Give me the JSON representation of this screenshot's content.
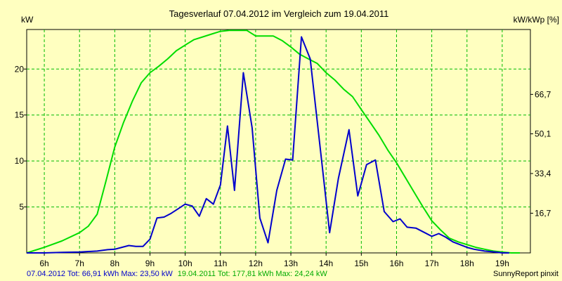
{
  "chart_data": {
    "type": "line",
    "title": "Tagesverlauf 07.04.2012 im Vergleich zum 19.04.2011",
    "ylabel_left": "kW",
    "ylabel_right": "kW/kWp [%]",
    "xlim": [
      5.5,
      19.8
    ],
    "ylim_left": [
      0,
      24.3
    ],
    "ylim_right": [
      0,
      94
    ],
    "x_ticks": [
      6,
      7,
      8,
      9,
      10,
      11,
      12,
      13,
      14,
      15,
      16,
      17,
      18,
      19
    ],
    "x_tick_labels": [
      "6h",
      "7h",
      "8h",
      "9h",
      "10h",
      "11h",
      "12h",
      "13h",
      "14h",
      "15h",
      "16h",
      "17h",
      "18h",
      "19h"
    ],
    "y_left_ticks": [
      5,
      10,
      15,
      20
    ],
    "y_left_tick_labels": [
      "5",
      "10",
      "15",
      "20"
    ],
    "y_right_ticks": [
      16.7,
      33.4,
      50.1,
      66.7
    ],
    "y_right_tick_labels": [
      "16,7",
      "33,4",
      "50,1",
      "66,7"
    ],
    "grid": true,
    "series": [
      {
        "name": "07.04.2012",
        "summary": "07.04.2012 Tot: 66,91 kWh Max: 23,50 kW",
        "color": "#0000cc",
        "x": [
          5.5,
          6.0,
          6.5,
          7.0,
          7.5,
          7.8,
          8.0,
          8.2,
          8.4,
          8.6,
          8.8,
          9.0,
          9.2,
          9.4,
          9.6,
          9.8,
          10.0,
          10.2,
          10.4,
          10.6,
          10.8,
          11.0,
          11.2,
          11.4,
          11.65,
          11.9,
          12.12,
          12.35,
          12.6,
          12.85,
          13.05,
          13.3,
          13.55,
          13.9,
          14.1,
          14.35,
          14.65,
          14.9,
          15.15,
          15.4,
          15.65,
          15.9,
          16.1,
          16.3,
          16.55,
          16.8,
          17.0,
          17.2,
          17.4,
          17.6,
          17.8,
          18.0,
          18.2,
          18.5,
          18.8,
          19.0,
          19.2
        ],
        "y": [
          0.0,
          0.0,
          0.05,
          0.1,
          0.2,
          0.35,
          0.4,
          0.6,
          0.8,
          0.7,
          0.7,
          1.5,
          3.8,
          3.9,
          4.3,
          4.8,
          5.3,
          5.1,
          4.0,
          5.9,
          5.3,
          7.4,
          13.8,
          6.8,
          19.6,
          13.6,
          3.8,
          1.1,
          6.8,
          10.2,
          10.1,
          23.5,
          21.1,
          9.1,
          2.2,
          8.1,
          13.4,
          6.2,
          9.6,
          10.1,
          4.5,
          3.4,
          3.7,
          2.8,
          2.7,
          2.2,
          1.8,
          2.1,
          1.7,
          1.2,
          0.9,
          0.6,
          0.4,
          0.2,
          0.1,
          0.0,
          0.0
        ]
      },
      {
        "name": "19.04.2011",
        "summary": "19.04.2011 Tot: 177,81 kWh Max: 24,24 kW",
        "color": "#00dd00",
        "x": [
          5.5,
          6.0,
          6.5,
          7.0,
          7.25,
          7.5,
          7.75,
          8.0,
          8.25,
          8.5,
          8.75,
          9.0,
          9.25,
          9.5,
          9.75,
          10.0,
          10.25,
          10.5,
          10.75,
          11.0,
          11.25,
          11.5,
          11.75,
          12.0,
          12.25,
          12.5,
          12.75,
          13.0,
          13.25,
          13.5,
          13.75,
          14.0,
          14.25,
          14.5,
          14.75,
          15.0,
          15.25,
          15.5,
          15.75,
          16.0,
          16.25,
          16.5,
          16.75,
          17.0,
          17.25,
          17.5,
          17.75,
          18.0,
          18.25,
          18.5,
          18.75,
          19.0,
          19.25,
          19.5
        ],
        "y": [
          0.0,
          0.6,
          1.3,
          2.2,
          2.9,
          4.2,
          7.8,
          11.5,
          14.2,
          16.5,
          18.5,
          19.6,
          20.3,
          21.1,
          22.0,
          22.6,
          23.2,
          23.5,
          23.8,
          24.1,
          24.2,
          24.2,
          24.2,
          23.6,
          23.6,
          23.6,
          23.1,
          22.4,
          21.6,
          21.1,
          20.6,
          19.6,
          18.8,
          17.8,
          17.0,
          15.6,
          14.2,
          12.8,
          11.2,
          9.8,
          8.2,
          6.6,
          5.0,
          3.5,
          2.5,
          1.6,
          1.2,
          0.9,
          0.6,
          0.4,
          0.2,
          0.1,
          0.0,
          0.0
        ]
      }
    ],
    "credit": "SunnyReport pinxit"
  }
}
